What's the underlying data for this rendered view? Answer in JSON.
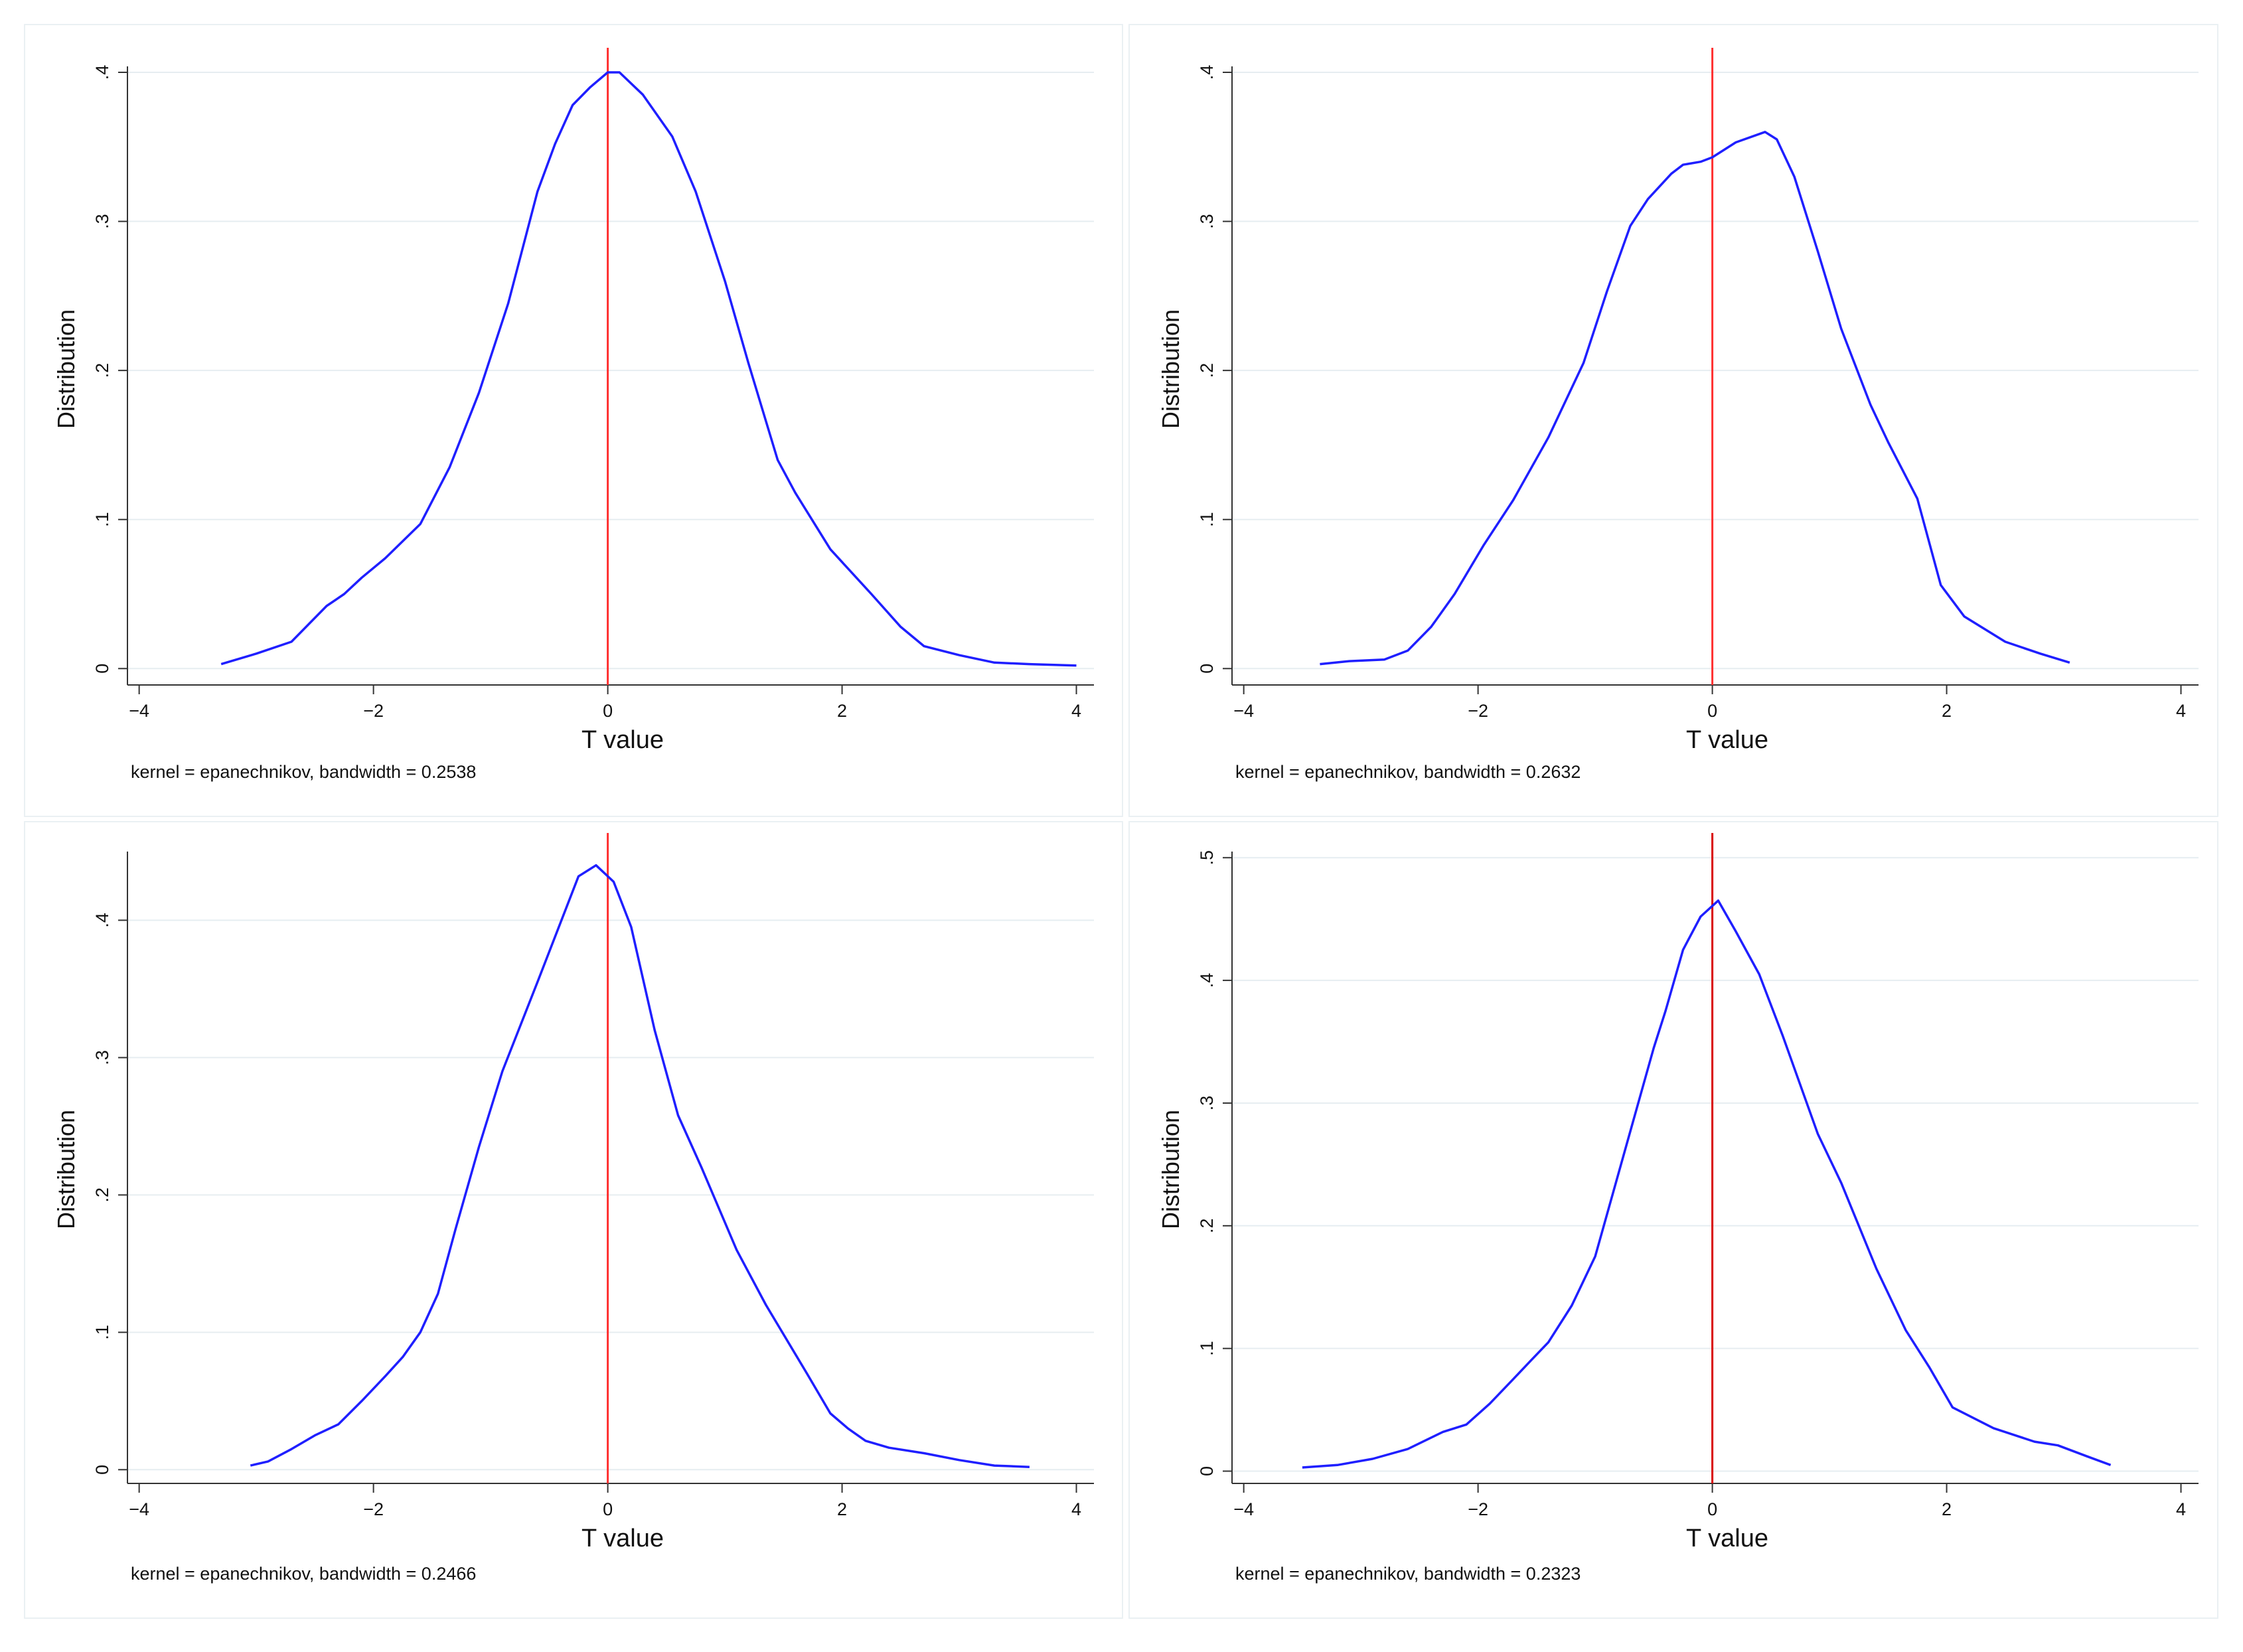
{
  "chart_data": [
    {
      "type": "line",
      "xlabel": "T value",
      "ylabel": "Distribution",
      "note": "kernel = epanechnikov, bandwidth = 0.2538",
      "xlim": [
        -4.1,
        4.15
      ],
      "ylim": [
        -0.011,
        0.404
      ],
      "xticks": [
        -4,
        -2,
        0,
        2,
        4
      ],
      "xtick_labels": [
        "−4",
        "−2",
        "0",
        "2",
        "4"
      ],
      "yticks": [
        0,
        0.1,
        0.2,
        0.3,
        0.4
      ],
      "ytick_labels": [
        "0",
        ".1",
        ".2",
        ".3",
        ".4"
      ],
      "vline_x": 0,
      "colors": {
        "line": "#1f1fff",
        "vline": "#ff3030",
        "grid": "#e6edf1",
        "axis": "#333333"
      },
      "series": [
        {
          "name": "density",
          "x": [
            -3.3,
            -3.0,
            -2.7,
            -2.55,
            -2.4,
            -2.25,
            -2.1,
            -1.9,
            -1.6,
            -1.35,
            -1.1,
            -0.85,
            -0.6,
            -0.45,
            -0.3,
            -0.15,
            0.0,
            0.1,
            0.3,
            0.55,
            0.75,
            1.0,
            1.2,
            1.45,
            1.6,
            1.9,
            2.25,
            2.5,
            2.7,
            3.0,
            3.3,
            3.6,
            4.0
          ],
          "y": [
            0.003,
            0.01,
            0.018,
            0.03,
            0.042,
            0.05,
            0.061,
            0.074,
            0.097,
            0.135,
            0.185,
            0.245,
            0.32,
            0.352,
            0.378,
            0.39,
            0.4,
            0.4,
            0.385,
            0.357,
            0.32,
            0.26,
            0.205,
            0.14,
            0.118,
            0.08,
            0.05,
            0.028,
            0.015,
            0.009,
            0.004,
            0.003,
            0.002
          ]
        }
      ]
    },
    {
      "type": "line",
      "xlabel": "T value",
      "ylabel": "Distribution",
      "note": "kernel = epanechnikov, bandwidth = 0.2632",
      "xlim": [
        -4.1,
        4.15
      ],
      "ylim": [
        -0.011,
        0.404
      ],
      "xticks": [
        -4,
        -2,
        0,
        2,
        4
      ],
      "xtick_labels": [
        "−4",
        "−2",
        "0",
        "2",
        "4"
      ],
      "yticks": [
        0,
        0.1,
        0.2,
        0.3,
        0.4
      ],
      "ytick_labels": [
        "0",
        ".1",
        ".2",
        ".3",
        ".4"
      ],
      "vline_x": 0,
      "colors": {
        "line": "#1f1fff",
        "vline": "#ff3030",
        "grid": "#e6edf1",
        "axis": "#333333"
      },
      "series": [
        {
          "name": "density",
          "x": [
            -3.35,
            -3.1,
            -2.8,
            -2.6,
            -2.4,
            -2.2,
            -1.95,
            -1.7,
            -1.4,
            -1.1,
            -0.9,
            -0.7,
            -0.55,
            -0.35,
            -0.25,
            -0.1,
            0.0,
            0.2,
            0.45,
            0.55,
            0.7,
            0.9,
            1.1,
            1.35,
            1.5,
            1.75,
            1.95,
            2.15,
            2.5,
            2.8,
            3.05
          ],
          "y": [
            0.003,
            0.005,
            0.006,
            0.012,
            0.028,
            0.05,
            0.083,
            0.113,
            0.155,
            0.205,
            0.253,
            0.297,
            0.315,
            0.332,
            0.338,
            0.34,
            0.343,
            0.353,
            0.36,
            0.355,
            0.33,
            0.28,
            0.228,
            0.177,
            0.152,
            0.114,
            0.056,
            0.035,
            0.018,
            0.01,
            0.004
          ]
        }
      ]
    },
    {
      "type": "line",
      "xlabel": "T value",
      "ylabel": "Distribution",
      "note": "kernel = epanechnikov, bandwidth = 0.2466",
      "xlim": [
        -4.1,
        4.15
      ],
      "ylim": [
        -0.01,
        0.45
      ],
      "xticks": [
        -4,
        -2,
        0,
        2,
        4
      ],
      "xtick_labels": [
        "−4",
        "−2",
        "0",
        "2",
        "4"
      ],
      "yticks": [
        0,
        0.1,
        0.2,
        0.3,
        0.4
      ],
      "ytick_labels": [
        "0",
        ".1",
        ".2",
        ".3",
        ".4"
      ],
      "vline_x": 0,
      "colors": {
        "line": "#1f1fff",
        "vline": "#ff3030",
        "grid": "#e6edf1",
        "axis": "#333333"
      },
      "series": [
        {
          "name": "density",
          "x": [
            -3.05,
            -2.9,
            -2.7,
            -2.5,
            -2.3,
            -2.1,
            -1.9,
            -1.75,
            -1.6,
            -1.45,
            -1.3,
            -1.1,
            -0.9,
            -0.6,
            -0.25,
            -0.1,
            0.05,
            0.2,
            0.4,
            0.6,
            0.8,
            1.1,
            1.35,
            1.7,
            1.9,
            2.05,
            2.2,
            2.4,
            2.7,
            3.0,
            3.3,
            3.6
          ],
          "y": [
            0.003,
            0.006,
            0.015,
            0.025,
            0.033,
            0.05,
            0.068,
            0.082,
            0.1,
            0.128,
            0.175,
            0.235,
            0.29,
            0.355,
            0.432,
            0.44,
            0.428,
            0.395,
            0.32,
            0.258,
            0.22,
            0.16,
            0.12,
            0.07,
            0.041,
            0.03,
            0.021,
            0.016,
            0.012,
            0.007,
            0.003,
            0.002
          ]
        }
      ]
    },
    {
      "type": "line",
      "xlabel": "T value",
      "ylabel": "Distribution",
      "note": "kernel = epanechnikov, bandwidth = 0.2323",
      "xlim": [
        -4.1,
        4.15
      ],
      "ylim": [
        -0.01,
        0.505
      ],
      "xticks": [
        -4,
        -2,
        0,
        2,
        4
      ],
      "xtick_labels": [
        "−4",
        "−2",
        "0",
        "2",
        "4"
      ],
      "yticks": [
        0,
        0.1,
        0.2,
        0.3,
        0.4,
        0.5
      ],
      "ytick_labels": [
        "0",
        ".1",
        ".2",
        ".3",
        ".4",
        ".5"
      ],
      "vline_x": 0,
      "colors": {
        "line": "#1f1fff",
        "vline": "#d90000",
        "grid": "#e6edf1",
        "axis": "#333333"
      },
      "series": [
        {
          "name": "density",
          "x": [
            -3.5,
            -3.2,
            -2.9,
            -2.6,
            -2.3,
            -2.1,
            -1.9,
            -1.7,
            -1.55,
            -1.4,
            -1.2,
            -1.0,
            -0.75,
            -0.5,
            -0.4,
            -0.25,
            -0.1,
            0.05,
            0.2,
            0.4,
            0.6,
            0.9,
            1.1,
            1.4,
            1.65,
            1.85,
            2.05,
            2.4,
            2.75,
            2.95,
            3.2,
            3.4
          ],
          "y": [
            0.003,
            0.005,
            0.01,
            0.018,
            0.032,
            0.038,
            0.055,
            0.075,
            0.09,
            0.105,
            0.135,
            0.175,
            0.26,
            0.345,
            0.375,
            0.425,
            0.452,
            0.465,
            0.44,
            0.405,
            0.355,
            0.275,
            0.235,
            0.165,
            0.115,
            0.085,
            0.052,
            0.035,
            0.024,
            0.021,
            0.012,
            0.005
          ]
        }
      ]
    }
  ]
}
